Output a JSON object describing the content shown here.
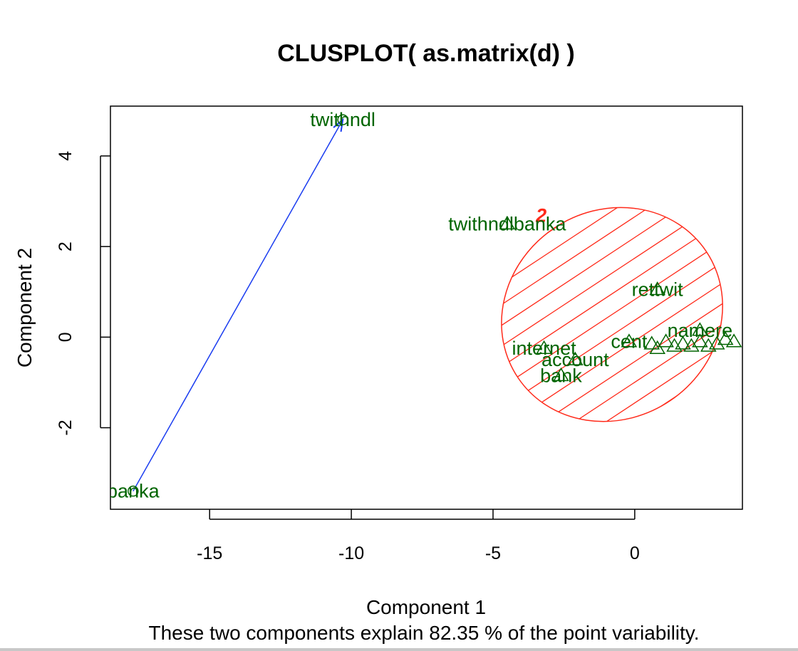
{
  "chart_data": {
    "type": "scatter",
    "title": "CLUSPLOT( as.matrix(d) )",
    "xlabel": "Component 1",
    "ylabel": "Component 2",
    "subtitle": "These two components explain 82.35 % of the point variability.",
    "xlim": [
      -18.5,
      3.8
    ],
    "ylim": [
      -3.8,
      5.1
    ],
    "x_ticks": [
      -15,
      -10,
      -5,
      0
    ],
    "y_ticks": [
      -2,
      0,
      2,
      4
    ],
    "grid": false,
    "colors": {
      "points": "#006400",
      "ellipse": "#ff2a1a",
      "arrow": "#1a3cf0",
      "cluster_label": "#ff2a1a"
    },
    "clusters": [
      {
        "label": "2",
        "center": [
          -0.8,
          0.5
        ],
        "semi_axes": [
          4.0,
          1.35
        ],
        "angle_deg": -34,
        "label_pos": [
          -3.3,
          2.7
        ],
        "shaded": true
      }
    ],
    "links": [
      {
        "from": [
          -17.7,
          -3.4
        ],
        "to": [
          -10.3,
          4.8
        ]
      }
    ],
    "points": [
      {
        "label": "twithndl",
        "x": -10.3,
        "y": 4.8,
        "marker": "circle"
      },
      {
        "label": "banka",
        "x": -17.7,
        "y": -3.4,
        "marker": "circle"
      },
      {
        "label": "twithndlbanka",
        "x": -4.5,
        "y": 2.5,
        "marker": "triangle"
      },
      {
        "label": "rettwit",
        "x": 0.8,
        "y": 1.05,
        "marker": "triangle"
      },
      {
        "label": "internet",
        "x": -3.2,
        "y": -0.25,
        "marker": "triangle"
      },
      {
        "label": "account",
        "x": -2.1,
        "y": -0.5,
        "marker": "triangle"
      },
      {
        "label": "bank",
        "x": -2.6,
        "y": -0.85,
        "marker": "triangle"
      },
      {
        "label": "cent",
        "x": -0.2,
        "y": -0.1,
        "marker": "triangle"
      },
      {
        "label": "namere",
        "x": 2.3,
        "y": 0.15,
        "marker": "triangle"
      },
      {
        "label": "",
        "x": 0.6,
        "y": -0.15,
        "marker": "triangle"
      },
      {
        "label": "",
        "x": 0.8,
        "y": -0.25,
        "marker": "triangle"
      },
      {
        "label": "",
        "x": 1.1,
        "y": -0.1,
        "marker": "triangle"
      },
      {
        "label": "",
        "x": 1.4,
        "y": -0.2,
        "marker": "triangle"
      },
      {
        "label": "",
        "x": 1.7,
        "y": -0.15,
        "marker": "triangle"
      },
      {
        "label": "",
        "x": 2.0,
        "y": -0.2,
        "marker": "triangle"
      },
      {
        "label": "",
        "x": 2.3,
        "y": -0.1,
        "marker": "triangle"
      },
      {
        "label": "",
        "x": 2.6,
        "y": -0.2,
        "marker": "triangle"
      },
      {
        "label": "",
        "x": 2.9,
        "y": -0.15,
        "marker": "triangle"
      },
      {
        "label": "",
        "x": 3.2,
        "y": -0.05,
        "marker": "triangle"
      },
      {
        "label": "",
        "x": 3.5,
        "y": -0.1,
        "marker": "triangle"
      }
    ]
  }
}
